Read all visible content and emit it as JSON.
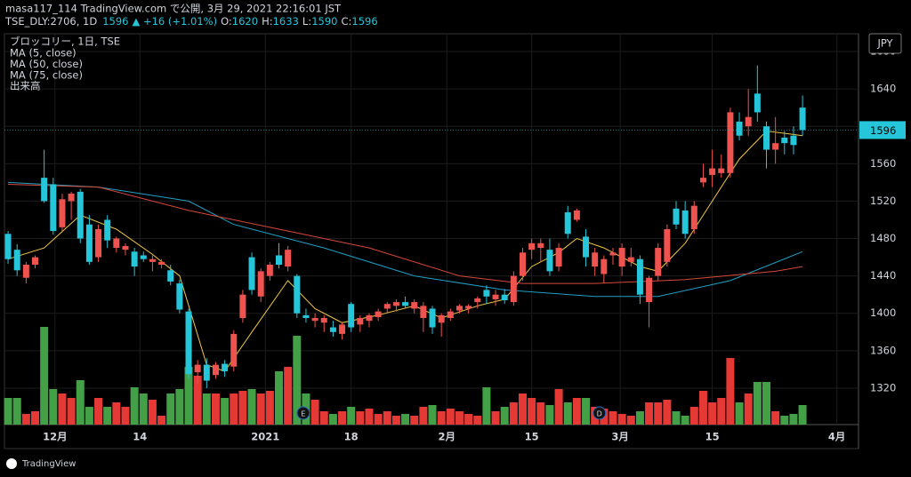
{
  "header": {
    "line1": "masa117_114 TradingView.com で公開, 3月 29, 2021 22:16:01 JST",
    "symbol": "TSE_DLY:2706, 1D",
    "last": 1596,
    "change": "▲ +16 (+1.01%)",
    "ohlc": [
      {
        "label": "O:",
        "value": 1620
      },
      {
        "label": "H:",
        "value": 1633
      },
      {
        "label": "L:",
        "value": 1590
      },
      {
        "label": "C:",
        "value": 1596
      }
    ]
  },
  "footer": "TradingView",
  "chart_data": {
    "type": "candlestick",
    "legend_title": "ブロッコリー, 1日, TSE",
    "currency": "JPY",
    "up_color": "#ef5350",
    "down_color": "#26c6da",
    "volume_name": "出来高",
    "volume_up_color": "#e53935",
    "volume_down_color": "#43a047",
    "ylim": [
      1281,
      1699
    ],
    "yticks": [
      1320,
      1360,
      1400,
      1440,
      1480,
      1520,
      1560,
      1600,
      1640,
      1680
    ],
    "xlim": [
      -0.4,
      94.2
    ],
    "xticks": [
      {
        "value": 5.2,
        "label": "12月"
      },
      {
        "value": 14.6,
        "label": "14"
      },
      {
        "value": 28.5,
        "label": "2021"
      },
      {
        "value": 38,
        "label": "18"
      },
      {
        "value": 48.6,
        "label": "2月"
      },
      {
        "value": 58,
        "label": "15"
      },
      {
        "value": 67.8,
        "label": "3月"
      },
      {
        "value": 78,
        "label": "15"
      },
      {
        "value": 91.8,
        "label": "4月"
      }
    ],
    "grid": true,
    "open": [
      1485,
      1468,
      1438,
      1452,
      1545,
      1538,
      1492,
      1520,
      1530,
      1495,
      1460,
      1500,
      1470,
      1468,
      1466,
      1462,
      1455,
      1452,
      1446,
      1432,
      1402,
      1337,
      1345,
      1334,
      1346,
      1343,
      1395,
      1460,
      1418,
      1440,
      1462,
      1450,
      1440,
      1398,
      1392,
      1390,
      1385,
      1378,
      1410,
      1388,
      1392,
      1396,
      1405,
      1408,
      1412,
      1405,
      1395,
      1405,
      1390,
      1395,
      1403,
      1405,
      1412,
      1425,
      1415,
      1420,
      1412,
      1440,
      1468,
      1470,
      1468,
      1450,
      1508,
      1500,
      1482,
      1450,
      1442,
      1462,
      1450,
      1455,
      1458,
      1412,
      1440,
      1455,
      1512,
      1510,
      1490,
      1540,
      1548,
      1550,
      1550,
      1605,
      1600,
      1635,
      1600,
      1575,
      1588,
      1590,
      1620
    ],
    "high": [
      1488,
      1474,
      1455,
      1462,
      1575,
      1545,
      1528,
      1530,
      1533,
      1505,
      1495,
      1505,
      1482,
      1475,
      1470,
      1466,
      1462,
      1458,
      1452,
      1436,
      1405,
      1350,
      1352,
      1348,
      1350,
      1382,
      1425,
      1465,
      1448,
      1455,
      1475,
      1472,
      1442,
      1405,
      1400,
      1398,
      1392,
      1390,
      1412,
      1398,
      1400,
      1405,
      1412,
      1415,
      1418,
      1415,
      1412,
      1408,
      1400,
      1405,
      1410,
      1410,
      1418,
      1430,
      1425,
      1426,
      1445,
      1470,
      1480,
      1480,
      1480,
      1475,
      1515,
      1512,
      1490,
      1470,
      1462,
      1470,
      1475,
      1470,
      1462,
      1440,
      1475,
      1495,
      1520,
      1520,
      1520,
      1560,
      1575,
      1570,
      1620,
      1615,
      1640,
      1665,
      1605,
      1610,
      1595,
      1600,
      1633
    ],
    "low": [
      1453,
      1440,
      1432,
      1448,
      1518,
      1484,
      1488,
      1500,
      1475,
      1452,
      1455,
      1470,
      1465,
      1462,
      1440,
      1455,
      1445,
      1448,
      1430,
      1400,
      1330,
      1325,
      1320,
      1330,
      1332,
      1338,
      1390,
      1420,
      1412,
      1435,
      1448,
      1445,
      1395,
      1390,
      1385,
      1380,
      1375,
      1372,
      1380,
      1380,
      1385,
      1392,
      1400,
      1402,
      1405,
      1400,
      1380,
      1378,
      1375,
      1392,
      1400,
      1400,
      1405,
      1410,
      1408,
      1410,
      1408,
      1435,
      1458,
      1455,
      1440,
      1445,
      1480,
      1498,
      1450,
      1440,
      1432,
      1452,
      1440,
      1450,
      1410,
      1385,
      1435,
      1450,
      1490,
      1480,
      1485,
      1535,
      1535,
      1545,
      1545,
      1585,
      1590,
      1605,
      1555,
      1560,
      1570,
      1570,
      1590
    ],
    "close": [
      1458,
      1446,
      1452,
      1460,
      1520,
      1488,
      1522,
      1528,
      1480,
      1455,
      1490,
      1478,
      1480,
      1472,
      1450,
      1458,
      1458,
      1455,
      1434,
      1404,
      1335,
      1345,
      1328,
      1345,
      1338,
      1378,
      1420,
      1425,
      1445,
      1452,
      1452,
      1468,
      1400,
      1395,
      1395,
      1395,
      1380,
      1388,
      1385,
      1395,
      1398,
      1402,
      1410,
      1412,
      1408,
      1412,
      1408,
      1385,
      1398,
      1402,
      1408,
      1408,
      1416,
      1418,
      1420,
      1414,
      1440,
      1465,
      1475,
      1475,
      1445,
      1470,
      1485,
      1510,
      1460,
      1465,
      1458,
      1465,
      1470,
      1460,
      1420,
      1438,
      1470,
      1490,
      1495,
      1485,
      1515,
      1545,
      1555,
      1555,
      1615,
      1590,
      1610,
      1615,
      1575,
      1582,
      1582,
      1580,
      1596
    ],
    "volume": [
      30,
      30,
      12,
      15,
      110,
      40,
      35,
      30,
      50,
      20,
      30,
      20,
      25,
      20,
      42,
      35,
      28,
      10,
      35,
      40,
      65,
      55,
      35,
      35,
      30,
      35,
      38,
      40,
      35,
      38,
      60,
      65,
      100,
      35,
      28,
      15,
      12,
      15,
      20,
      15,
      18,
      12,
      15,
      10,
      12,
      10,
      20,
      22,
      15,
      18,
      15,
      12,
      10,
      42,
      15,
      20,
      25,
      35,
      30,
      25,
      22,
      40,
      25,
      30,
      30,
      20,
      18,
      15,
      12,
      10,
      15,
      25,
      25,
      28,
      15,
      10,
      20,
      38,
      25,
      30,
      75,
      25,
      35,
      48,
      48,
      15,
      10,
      12,
      22
    ],
    "series": [
      {
        "name": "MA (5, close)",
        "color": "#f2c744",
        "x": [
          0,
          4,
          8,
          12,
          16,
          19,
          22,
          24,
          27,
          31,
          34,
          37,
          41,
          45,
          48,
          52,
          55,
          58,
          61,
          63,
          66,
          70,
          72,
          75,
          78,
          81,
          84,
          88
        ],
        "values": [
          1458,
          1470,
          1505,
          1490,
          1463,
          1440,
          1345,
          1338,
          1380,
          1435,
          1405,
          1390,
          1398,
          1408,
          1395,
          1408,
          1415,
          1450,
          1465,
          1480,
          1470,
          1450,
          1445,
          1475,
          1520,
          1565,
          1595,
          1590
        ]
      },
      {
        "name": "MA (50, close)",
        "color": "#1fa0c6",
        "x": [
          0,
          10,
          20,
          25,
          35,
          45,
          55,
          65,
          72,
          80,
          88
        ],
        "values": [
          1540,
          1535,
          1520,
          1495,
          1470,
          1440,
          1425,
          1418,
          1418,
          1435,
          1466
        ]
      },
      {
        "name": "MA (75, close)",
        "color": "#d9483b",
        "x": [
          0,
          10,
          20,
          30,
          40,
          50,
          57,
          65,
          75,
          85,
          88
        ],
        "values": [
          1538,
          1535,
          1510,
          1490,
          1470,
          1440,
          1432,
          1432,
          1436,
          1445,
          1450
        ]
      }
    ],
    "events": [
      {
        "label": "E",
        "x": 32.7
      },
      {
        "label": "D",
        "x": 65.5
      }
    ]
  }
}
